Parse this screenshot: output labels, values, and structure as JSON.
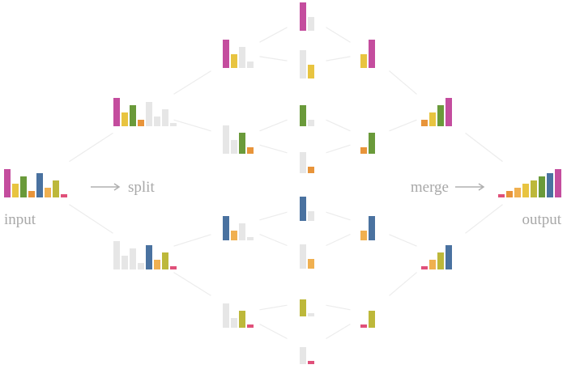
{
  "labels": {
    "input": "input",
    "split": "split",
    "merge": "merge",
    "output": "output"
  },
  "columns": [
    [
      [
        {
          "value": 35,
          "color": "#c44d9e"
        },
        {
          "value": 17,
          "color": "#e8c440"
        },
        {
          "value": 26,
          "color": "#6a9a3a"
        },
        {
          "value": 8,
          "color": "#e8943a"
        },
        {
          "value": 30,
          "color": "#4a72a0"
        },
        {
          "value": 12,
          "color": "#f0b050"
        },
        {
          "value": 21,
          "color": "#bdb83a"
        },
        {
          "value": 4,
          "color": "#e0507a"
        }
      ]
    ],
    [
      [
        {
          "value": 35,
          "color": "#c44d9e"
        },
        {
          "value": 17,
          "color": "#e8c440"
        },
        {
          "value": 26,
          "color": "#6a9a3a"
        },
        {
          "value": 8,
          "color": "#e8943a"
        },
        {
          "value": 30,
          "color": "#e6e6e6"
        },
        {
          "value": 12,
          "color": "#e6e6e6"
        },
        {
          "value": 21,
          "color": "#e6e6e6"
        },
        {
          "value": 4,
          "color": "#e6e6e6"
        }
      ],
      [
        {
          "value": 35,
          "color": "#e6e6e6"
        },
        {
          "value": 17,
          "color": "#e6e6e6"
        },
        {
          "value": 26,
          "color": "#e6e6e6"
        },
        {
          "value": 8,
          "color": "#e6e6e6"
        },
        {
          "value": 30,
          "color": "#4a72a0"
        },
        {
          "value": 12,
          "color": "#f0b050"
        },
        {
          "value": 21,
          "color": "#bdb83a"
        },
        {
          "value": 4,
          "color": "#e0507a"
        }
      ]
    ],
    [
      [
        {
          "value": 35,
          "color": "#c44d9e"
        },
        {
          "value": 17,
          "color": "#e8c440"
        },
        {
          "value": 26,
          "color": "#e6e6e6"
        },
        {
          "value": 8,
          "color": "#e6e6e6"
        }
      ],
      [
        {
          "value": 35,
          "color": "#e6e6e6"
        },
        {
          "value": 17,
          "color": "#e6e6e6"
        },
        {
          "value": 26,
          "color": "#6a9a3a"
        },
        {
          "value": 8,
          "color": "#e8943a"
        }
      ],
      [
        {
          "value": 30,
          "color": "#4a72a0"
        },
        {
          "value": 12,
          "color": "#f0b050"
        },
        {
          "value": 21,
          "color": "#e6e6e6"
        },
        {
          "value": 4,
          "color": "#e6e6e6"
        }
      ],
      [
        {
          "value": 30,
          "color": "#e6e6e6"
        },
        {
          "value": 12,
          "color": "#e6e6e6"
        },
        {
          "value": 21,
          "color": "#bdb83a"
        },
        {
          "value": 4,
          "color": "#e0507a"
        }
      ]
    ],
    [
      [
        {
          "value": 35,
          "color": "#c44d9e"
        },
        {
          "value": 17,
          "color": "#e6e6e6"
        }
      ],
      [
        {
          "value": 35,
          "color": "#e6e6e6"
        },
        {
          "value": 17,
          "color": "#e8c440"
        }
      ],
      [
        {
          "value": 26,
          "color": "#6a9a3a"
        },
        {
          "value": 8,
          "color": "#e6e6e6"
        }
      ],
      [
        {
          "value": 26,
          "color": "#e6e6e6"
        },
        {
          "value": 8,
          "color": "#e8943a"
        }
      ],
      [
        {
          "value": 30,
          "color": "#4a72a0"
        },
        {
          "value": 12,
          "color": "#e6e6e6"
        }
      ],
      [
        {
          "value": 30,
          "color": "#e6e6e6"
        },
        {
          "value": 12,
          "color": "#f0b050"
        }
      ],
      [
        {
          "value": 21,
          "color": "#bdb83a"
        },
        {
          "value": 4,
          "color": "#e6e6e6"
        }
      ],
      [
        {
          "value": 21,
          "color": "#e6e6e6"
        },
        {
          "value": 4,
          "color": "#e0507a"
        }
      ]
    ],
    [
      [
        {
          "value": 17,
          "color": "#e8c440"
        },
        {
          "value": 35,
          "color": "#c44d9e"
        }
      ],
      [
        {
          "value": 8,
          "color": "#e8943a"
        },
        {
          "value": 26,
          "color": "#6a9a3a"
        }
      ],
      [
        {
          "value": 12,
          "color": "#f0b050"
        },
        {
          "value": 30,
          "color": "#4a72a0"
        }
      ],
      [
        {
          "value": 4,
          "color": "#e0507a"
        },
        {
          "value": 21,
          "color": "#bdb83a"
        }
      ]
    ],
    [
      [
        {
          "value": 8,
          "color": "#e8943a"
        },
        {
          "value": 17,
          "color": "#e8c440"
        },
        {
          "value": 26,
          "color": "#6a9a3a"
        },
        {
          "value": 35,
          "color": "#c44d9e"
        }
      ],
      [
        {
          "value": 4,
          "color": "#e0507a"
        },
        {
          "value": 12,
          "color": "#f0b050"
        },
        {
          "value": 21,
          "color": "#bdb83a"
        },
        {
          "value": 30,
          "color": "#4a72a0"
        }
      ]
    ],
    [
      [
        {
          "value": 4,
          "color": "#e0507a"
        },
        {
          "value": 8,
          "color": "#e8943a"
        },
        {
          "value": 12,
          "color": "#f0b050"
        },
        {
          "value": 17,
          "color": "#e8c440"
        },
        {
          "value": 21,
          "color": "#bdb83a"
        },
        {
          "value": 26,
          "color": "#6a9a3a"
        },
        {
          "value": 30,
          "color": "#4a72a0"
        },
        {
          "value": 35,
          "color": "#c44d9e"
        }
      ]
    ]
  ]
}
